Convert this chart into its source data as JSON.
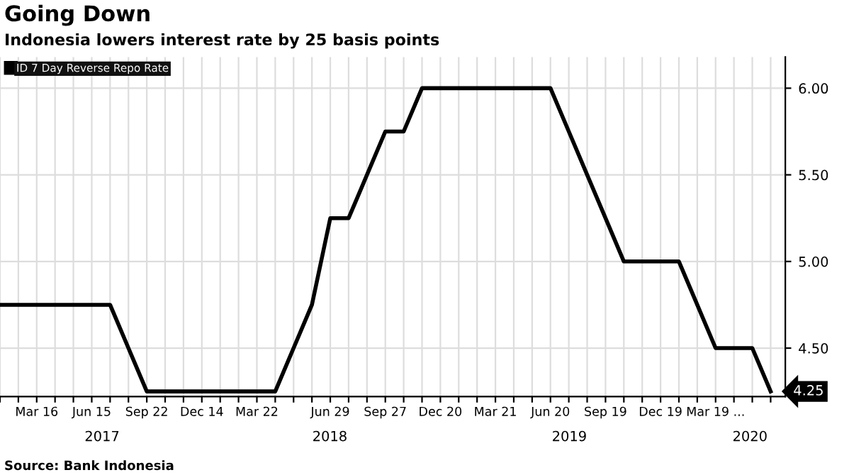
{
  "chart_data": {
    "type": "line",
    "title": "Going Down",
    "subtitle": "Indonesia lowers interest rate by 25 basis points",
    "categories": [
      null,
      null,
      "Mar 16",
      null,
      null,
      "Jun 15",
      null,
      null,
      "Sep 22",
      null,
      null,
      "Dec 14",
      null,
      null,
      "Mar 22",
      null,
      null,
      null,
      "Jun 29",
      null,
      null,
      "Sep 27",
      null,
      null,
      "Dec 20",
      null,
      null,
      "Mar 21",
      null,
      null,
      "Jun 20",
      null,
      null,
      "Sep 19",
      null,
      null,
      "Dec 19",
      null,
      null,
      "Mar 19 ...",
      null,
      null,
      null
    ],
    "series": [
      {
        "name": "ID 7 Day Reverse Repo Rate",
        "color": "#000000",
        "values": [
          4.75,
          4.75,
          4.75,
          4.75,
          4.75,
          4.75,
          4.75,
          4.5,
          4.25,
          4.25,
          4.25,
          4.25,
          4.25,
          4.25,
          4.25,
          4.25,
          4.5,
          4.75,
          5.25,
          5.25,
          5.5,
          5.75,
          5.75,
          6.0,
          6.0,
          6.0,
          6.0,
          6.0,
          6.0,
          6.0,
          6.0,
          5.75,
          5.5,
          5.25,
          5.0,
          5.0,
          5.0,
          5.0,
          4.75,
          4.5,
          4.5,
          4.5,
          4.25
        ],
        "value_labels": [
          null,
          null,
          null,
          null,
          null,
          null,
          null,
          null,
          null,
          null,
          null,
          null,
          null,
          null,
          null,
          null,
          null,
          null,
          null,
          null,
          null,
          null,
          null,
          null,
          null,
          null,
          null,
          null,
          null,
          null,
          null,
          null,
          null,
          null,
          null,
          null,
          null,
          null,
          null,
          null,
          null,
          null,
          "4.25"
        ]
      }
    ],
    "ylim": [
      4.22,
      6.18
    ],
    "yticks": [
      {
        "value": 4.5,
        "label": "4.50"
      },
      {
        "value": 5.0,
        "label": "5.00"
      },
      {
        "value": 5.5,
        "label": "5.50"
      },
      {
        "value": 6.0,
        "label": "6.00"
      }
    ],
    "annotations": [
      "2017",
      "2018",
      "2019",
      "2020",
      "Source: Bank Indonesia"
    ],
    "grid": true,
    "legend": "top left",
    "line_style": "solid",
    "marker": "none"
  }
}
